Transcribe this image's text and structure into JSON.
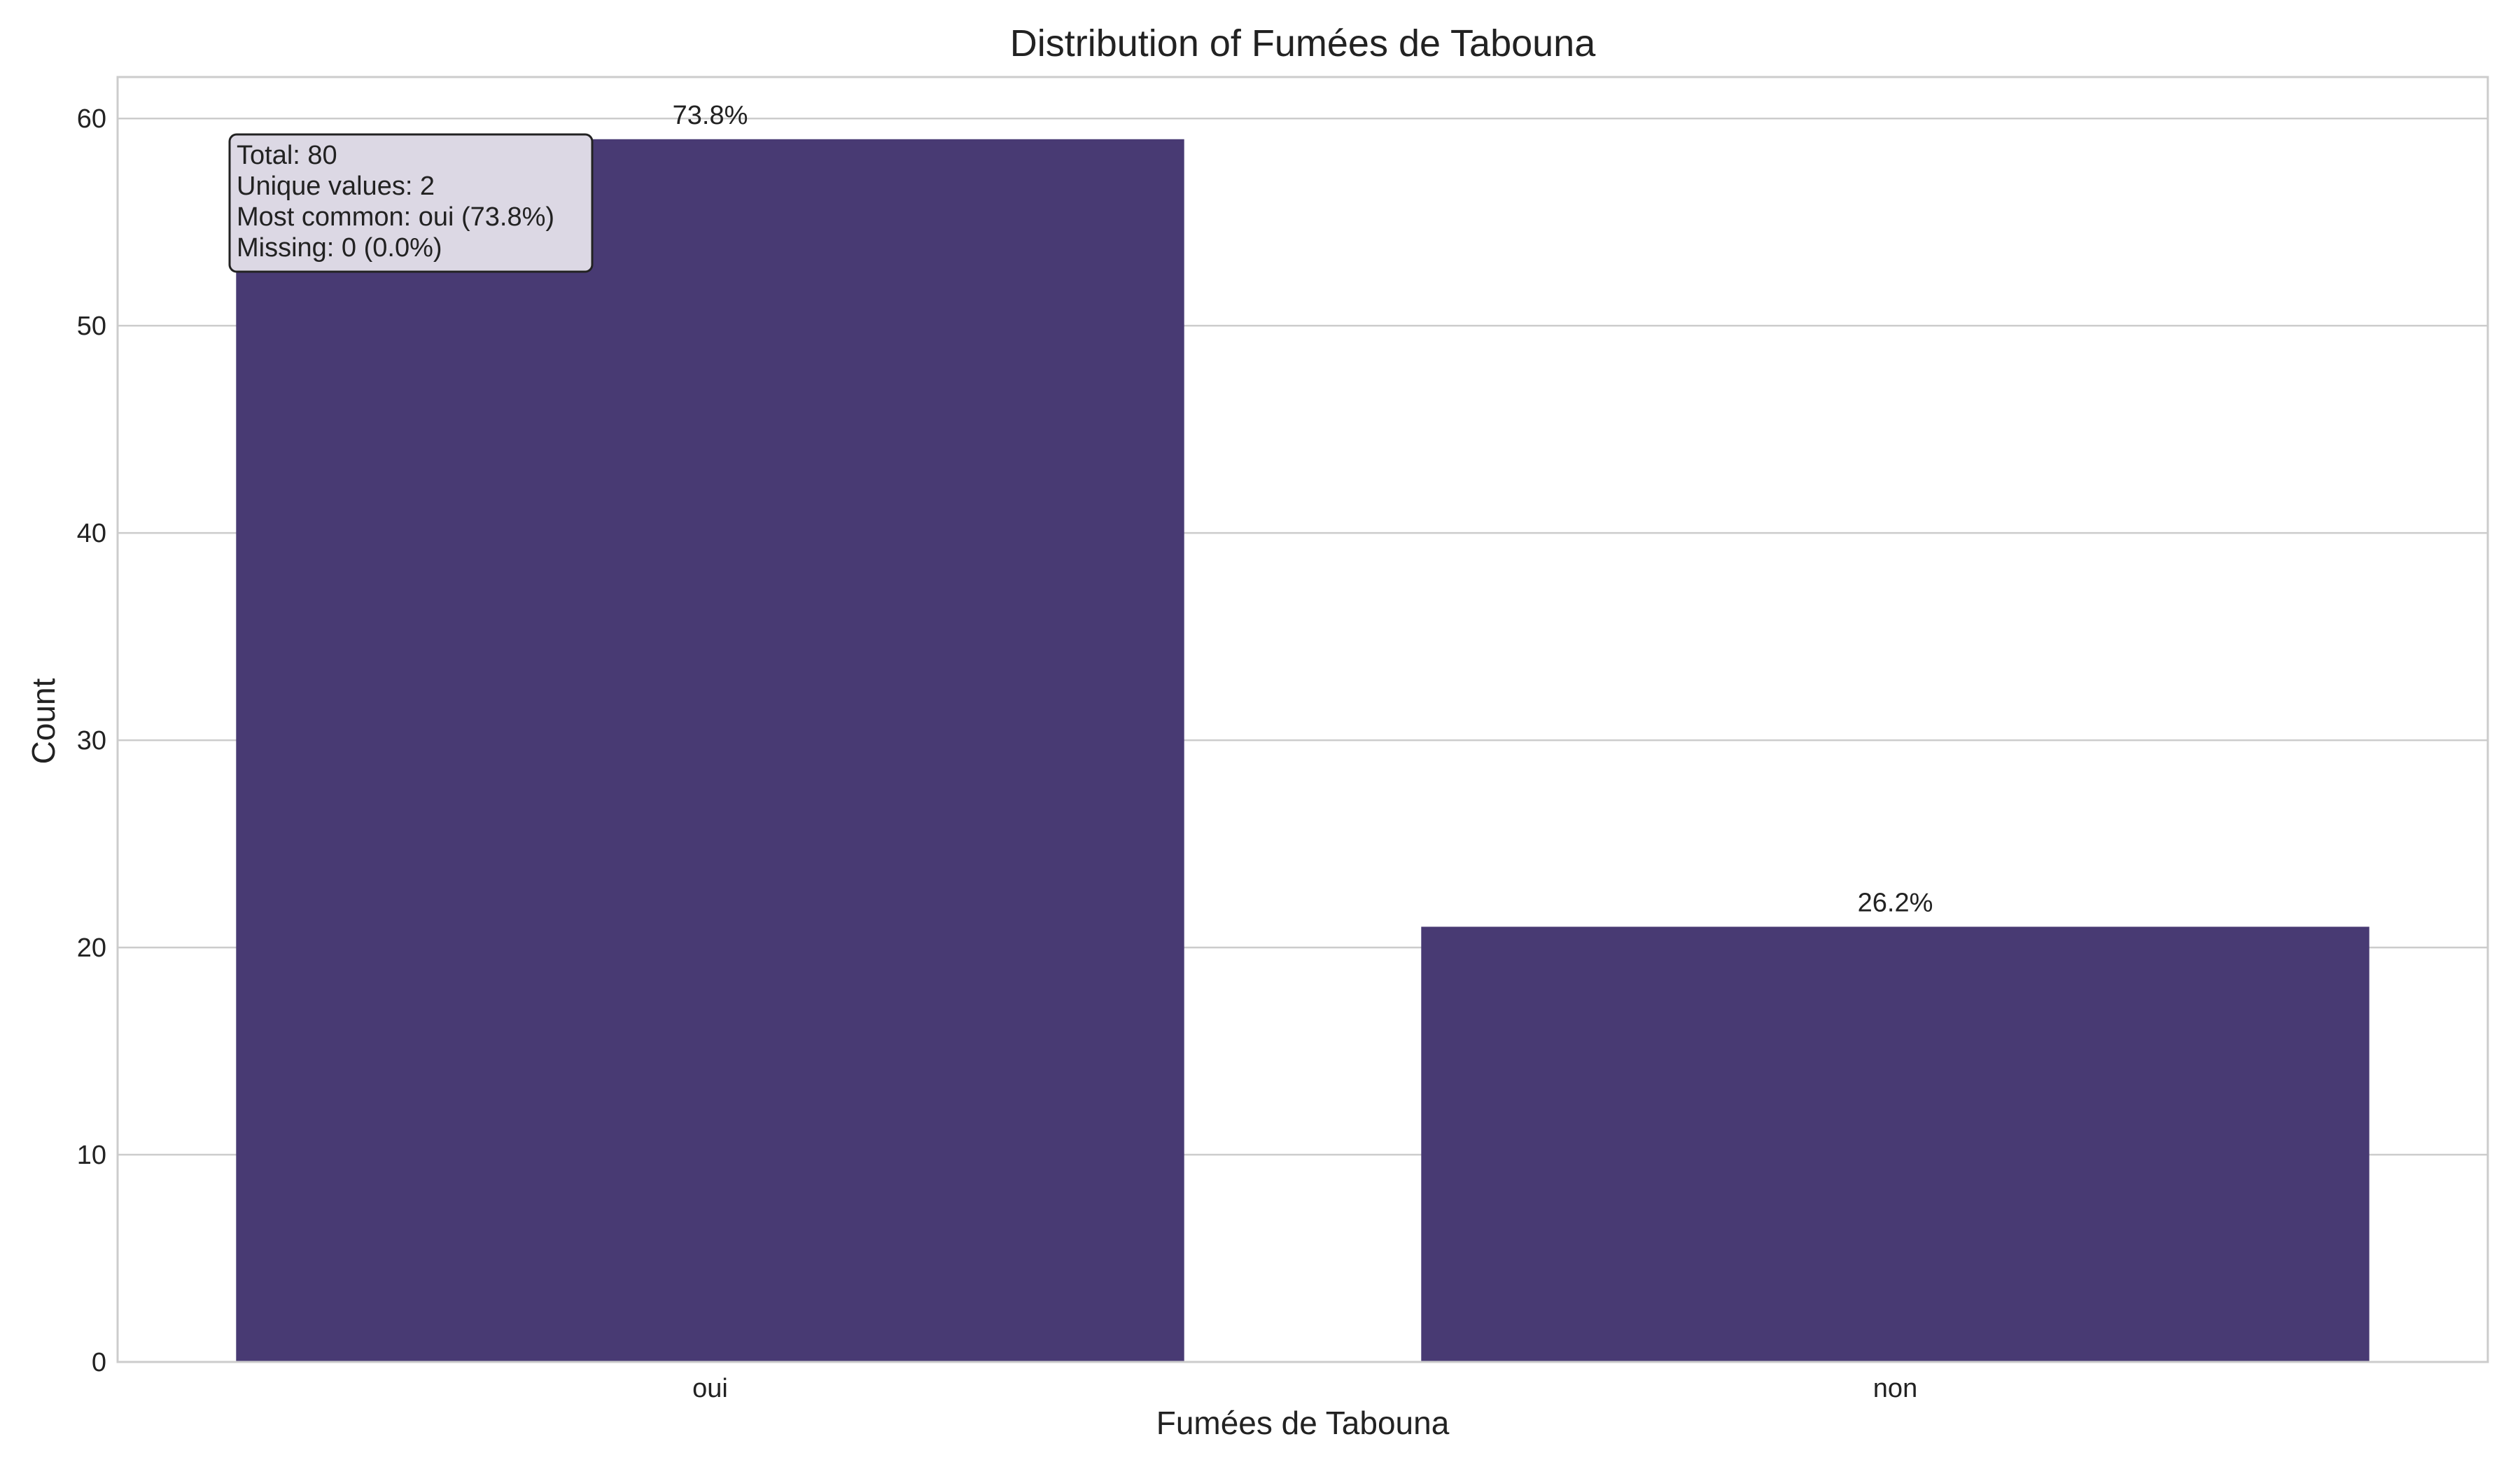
{
  "chart_data": {
    "type": "bar",
    "title": "Distribution of Fumées de Tabouna",
    "xlabel": "Fumées de Tabouna",
    "ylabel": "Count",
    "categories": [
      "oui",
      "non"
    ],
    "values": [
      59,
      21
    ],
    "bar_labels": [
      "73.8%",
      "26.2%"
    ],
    "ylim": [
      0,
      62
    ],
    "yticks": [
      0,
      10,
      20,
      30,
      40,
      50,
      60
    ],
    "grid": true,
    "bar_color": "#483a73",
    "stats_box": {
      "lines": [
        "Total: 80",
        "Unique values: 2",
        "Most common: oui (73.8%)",
        "Missing: 0 (0.0%)"
      ],
      "placement": "top-left"
    }
  }
}
